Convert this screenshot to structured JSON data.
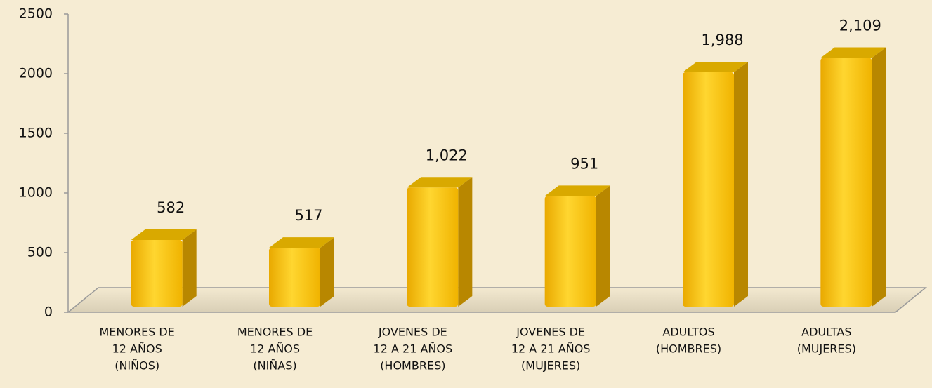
{
  "chart_data": {
    "type": "bar3d",
    "categories": [
      [
        "MENORES DE",
        "12 AÑOS",
        "(NIÑOS)"
      ],
      [
        "MENORES DE",
        "12 AÑOS",
        "(NIÑAS)"
      ],
      [
        "JOVENES DE",
        "12 A 21 AÑOS",
        "(HOMBRES)"
      ],
      [
        "JOVENES DE",
        "12 A 21 AÑOS",
        "(MUJERES)"
      ],
      [
        "ADULTOS",
        "(HOMBRES)"
      ],
      [
        "ADULTAS",
        "(MUJERES)"
      ]
    ],
    "values": [
      582,
      517,
      1022,
      951,
      1988,
      2109
    ],
    "value_labels": [
      "582",
      "517",
      "1,022",
      "951",
      "1,988",
      "2,109"
    ],
    "color": "#f7c200",
    "ylim": [
      0,
      2500
    ],
    "yticks": [
      0,
      500,
      1000,
      1500,
      2000,
      2500
    ]
  }
}
